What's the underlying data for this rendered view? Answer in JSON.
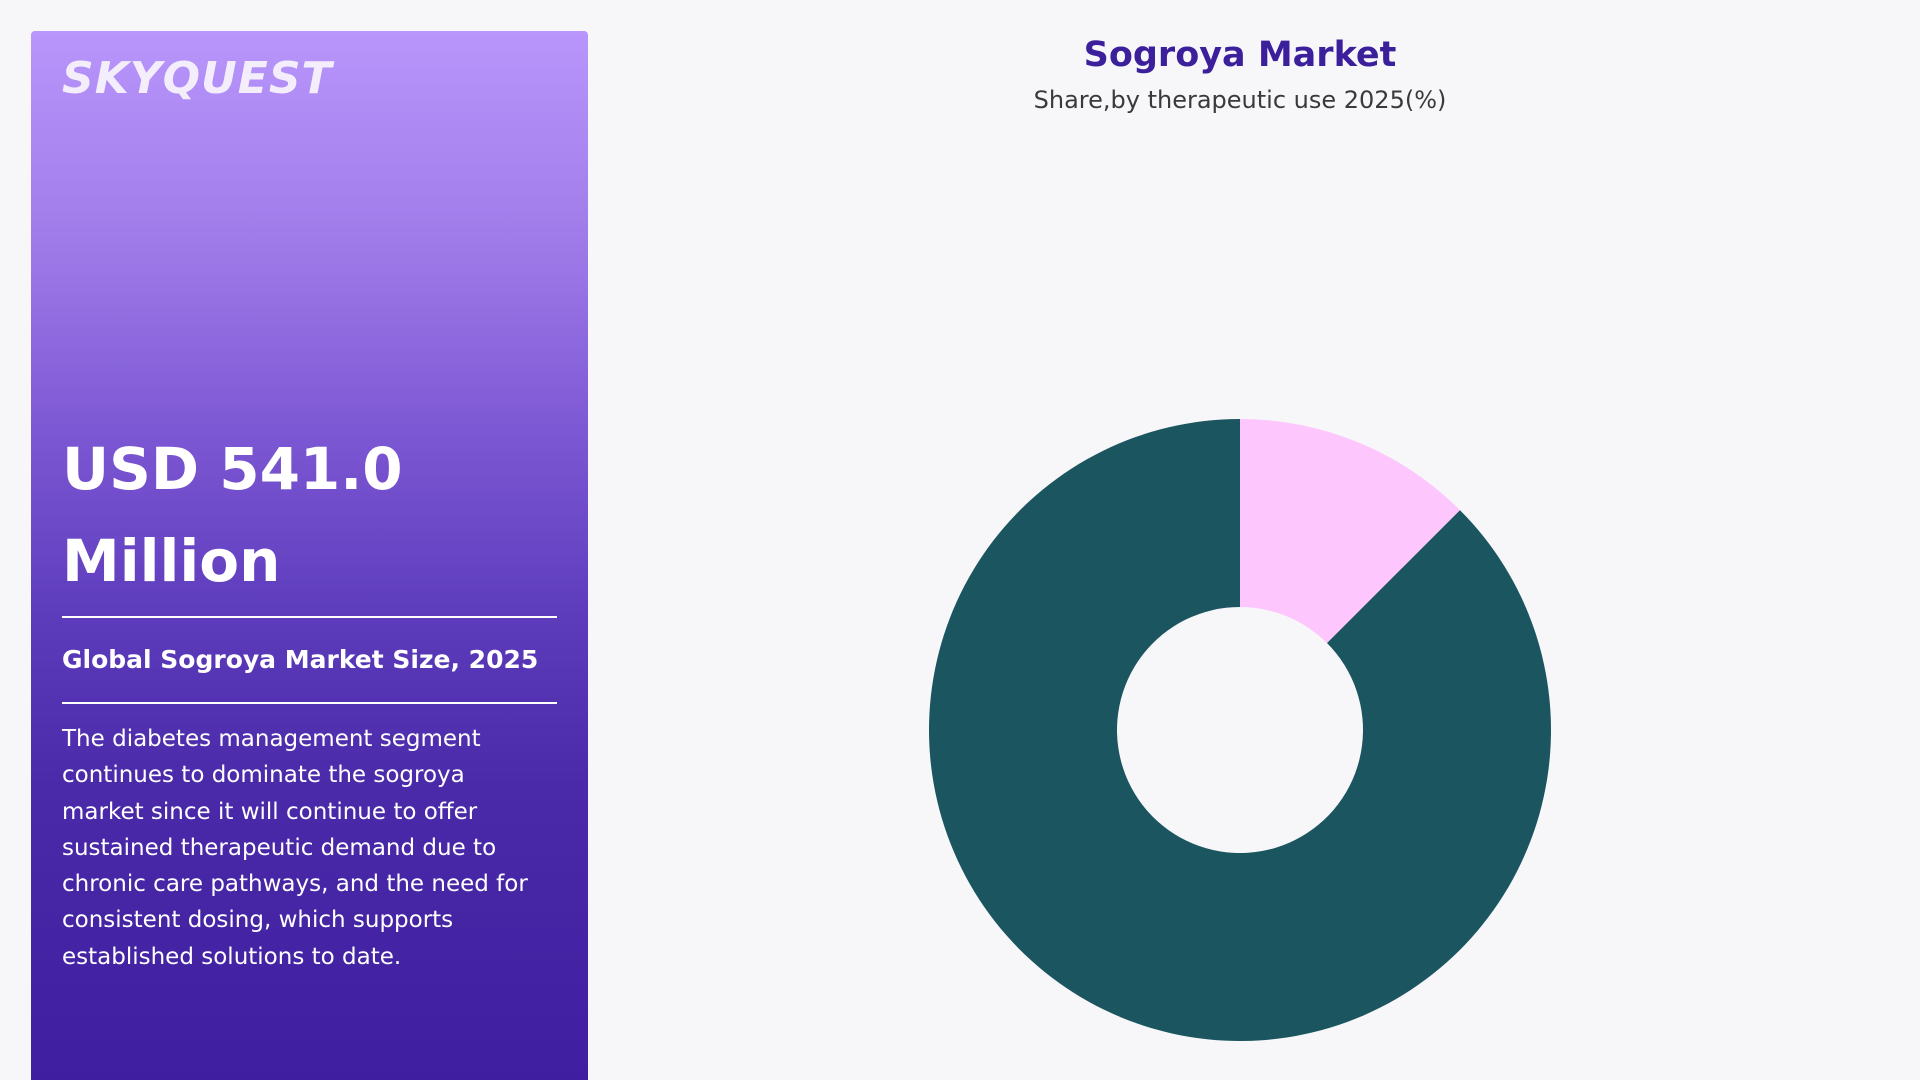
{
  "brand": {
    "logo_text": "SKYQUEST"
  },
  "side_panel": {
    "headline": "USD 541.0 Million",
    "subtitle": "Global Sogroya Market Size, 2025",
    "description": "The diabetes management segment continues to dominate the sogroya market since it will continue to offer sustained therapeutic demand due to chronic care pathways, and the need for consistent dosing, which supports established solutions to date."
  },
  "colors": {
    "panel_top": "#b896fb",
    "panel_bottom": "#3f1fa0",
    "title": "#3c1f9b",
    "segment_dominant": "#1b5660",
    "segment_minor": "#fdc6fc"
  },
  "chart_data": {
    "type": "pie",
    "style": "donut",
    "title": "Sogroya Market",
    "subtitle": "Share,by therapeutic use 2025(%)",
    "values": [
      87.5,
      12.5
    ],
    "colors": [
      "#1b5660",
      "#fdc6fc"
    ],
    "legend": "none"
  }
}
